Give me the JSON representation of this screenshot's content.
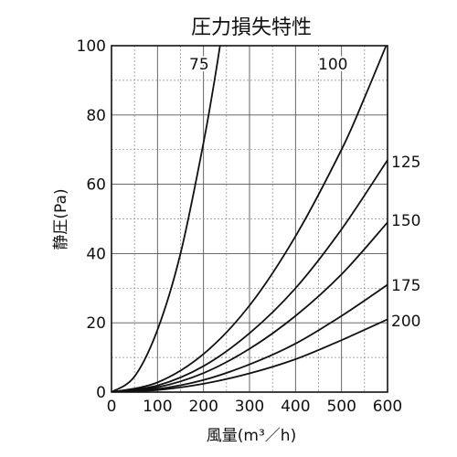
{
  "chart_data": {
    "type": "line",
    "title": "圧力損失特性",
    "xlabel": "風量(m³／h)",
    "ylabel": "静圧(Pa)",
    "xlim": [
      0,
      600
    ],
    "ylim": [
      0,
      100
    ],
    "x_ticks": [
      "0",
      "100",
      "200",
      "300",
      "400",
      "500",
      "600"
    ],
    "y_ticks": [
      "0",
      "20",
      "40",
      "60",
      "80",
      "100"
    ],
    "grid": true,
    "series": [
      {
        "name": "75",
        "x": [
          0,
          50,
          100,
          150,
          200,
          230,
          250
        ],
        "y": [
          0,
          4.5,
          18,
          40,
          72,
          95,
          113
        ]
      },
      {
        "name": "100",
        "x": [
          0,
          100,
          200,
          300,
          400,
          500,
          550,
          600
        ],
        "y": [
          0,
          2.8,
          11,
          25,
          45,
          70,
          85,
          101
        ]
      },
      {
        "name": "125",
        "x": [
          0,
          100,
          200,
          300,
          400,
          500,
          600
        ],
        "y": [
          0,
          1.9,
          7.5,
          17,
          30,
          47,
          67
        ]
      },
      {
        "name": "150",
        "x": [
          0,
          100,
          200,
          300,
          400,
          500,
          600
        ],
        "y": [
          0,
          1.4,
          5.5,
          12.5,
          22,
          34,
          49
        ]
      },
      {
        "name": "175",
        "x": [
          0,
          100,
          200,
          300,
          400,
          500,
          600
        ],
        "y": [
          0,
          0.9,
          3.5,
          8,
          14,
          22,
          31
        ]
      },
      {
        "name": "200",
        "x": [
          0,
          100,
          200,
          300,
          400,
          500,
          600
        ],
        "y": [
          0,
          0.6,
          2.4,
          5.4,
          9.5,
          15,
          21
        ]
      }
    ]
  }
}
